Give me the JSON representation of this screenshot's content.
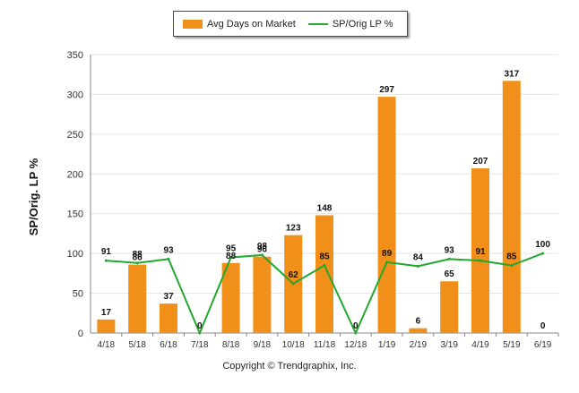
{
  "colors": {
    "bar": "#F0901A",
    "line": "#22A82E",
    "grid": "#e3e3e3",
    "axis": "#888888"
  },
  "chart_data": {
    "type": "bar",
    "categories": [
      "4/18",
      "5/18",
      "6/18",
      "7/18",
      "8/18",
      "9/18",
      "10/18",
      "11/18",
      "12/18",
      "1/19",
      "2/19",
      "3/19",
      "4/19",
      "5/19",
      "6/19"
    ],
    "series": [
      {
        "name": "Avg Days on Market",
        "type": "bar",
        "values": [
          17,
          86,
          37,
          0,
          88,
          96,
          123,
          148,
          0,
          297,
          6,
          65,
          207,
          317,
          0
        ]
      },
      {
        "name": "SP/Orig LP %",
        "type": "line",
        "values": [
          91,
          88,
          93,
          0,
          95,
          98,
          62,
          85,
          0,
          89,
          84,
          93,
          91,
          85,
          100
        ]
      }
    ],
    "ylabel": "SP/Orig. LP %",
    "xlabel": "",
    "ylim": [
      0,
      350
    ],
    "yticks": [
      0,
      50,
      100,
      150,
      200,
      250,
      300,
      350
    ],
    "grid": true,
    "legend": "top-center"
  },
  "legend": {
    "bar_label": "Avg Days on Market",
    "line_label": "SP/Orig LP %"
  },
  "copyright": "Copyright © Trendgraphix, Inc."
}
